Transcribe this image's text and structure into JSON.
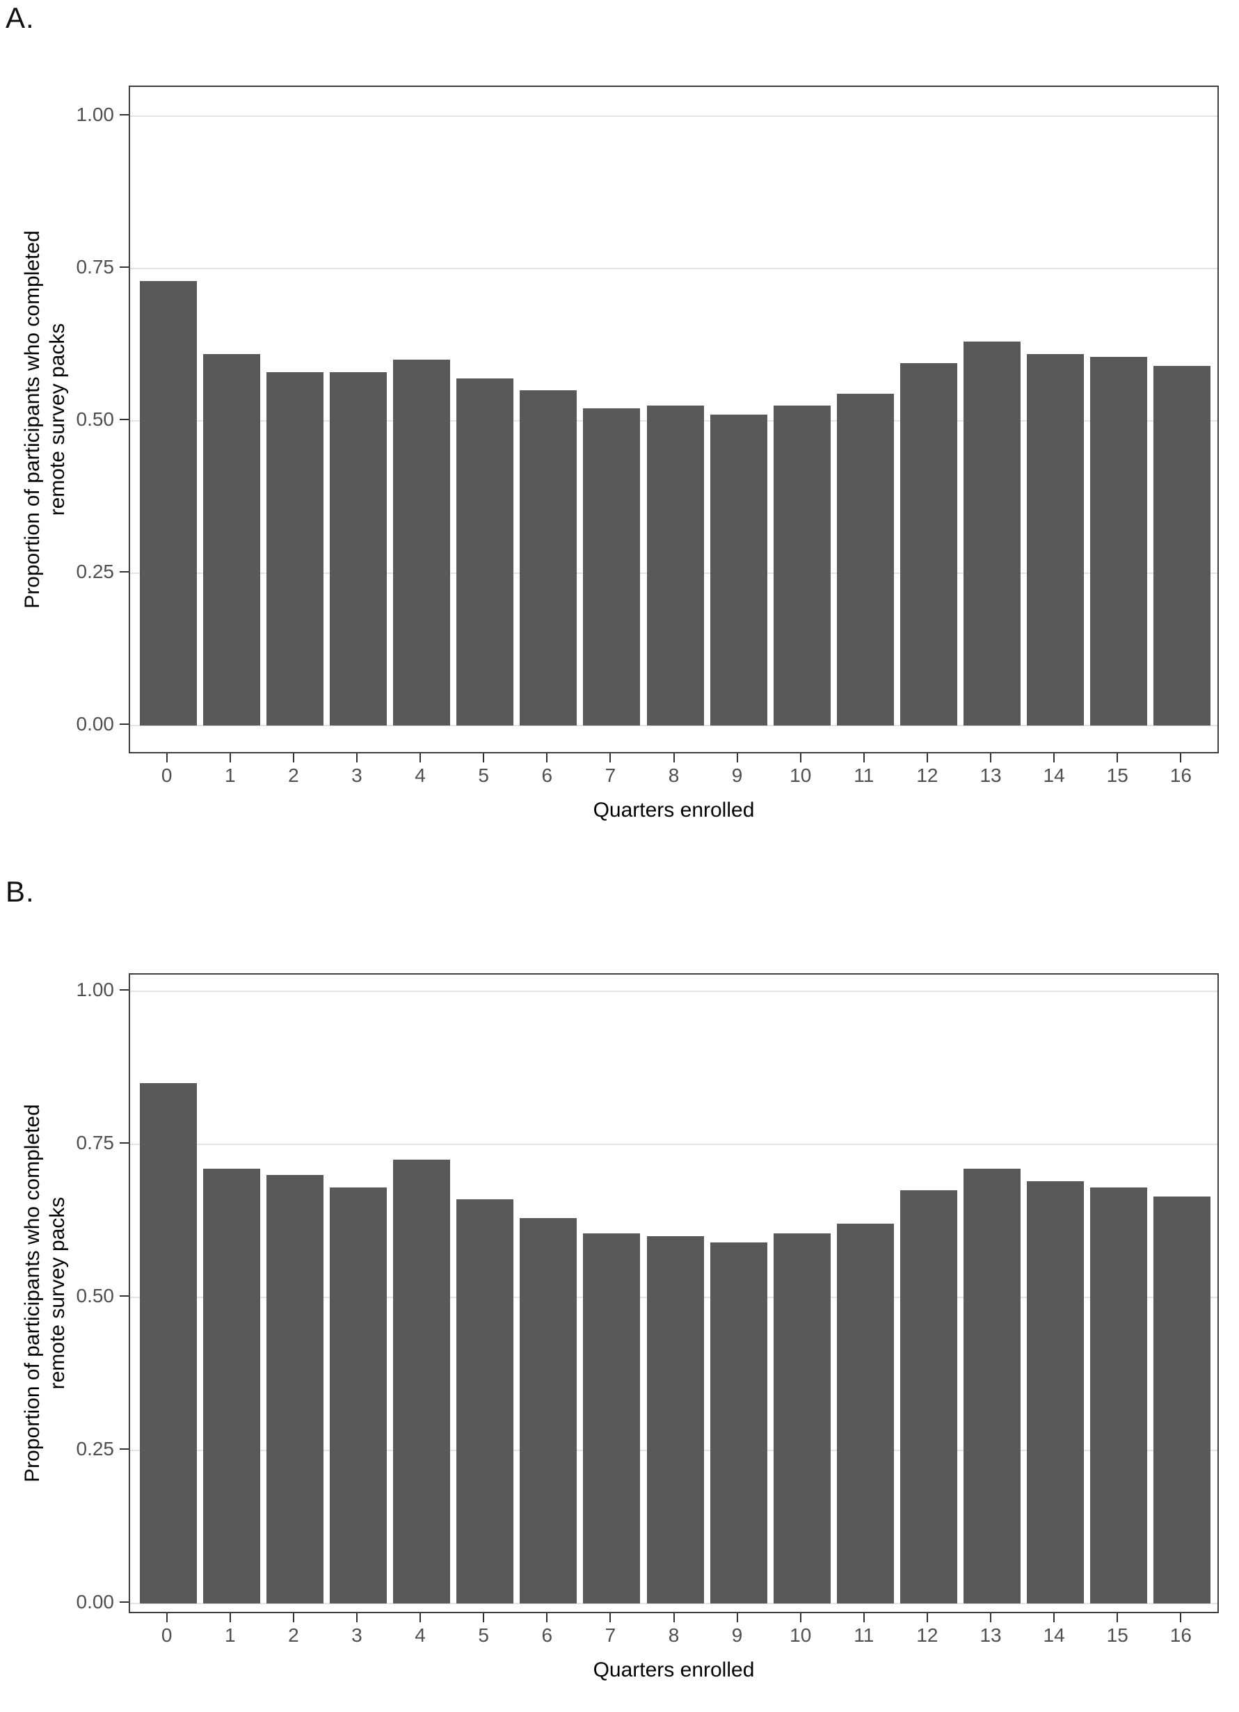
{
  "figure": {
    "background": "#ffffff"
  },
  "panels": [
    {
      "label": "A.",
      "y_title_line1": "Proportion of participants who completed",
      "y_title_line2": "remote survey packs",
      "x_title": "Quarters enrolled"
    },
    {
      "label": "B.",
      "y_title_line1": "Proportion of participants who completed",
      "y_title_line2": "remote survey packs",
      "x_title": "Quarters enrolled"
    }
  ],
  "colors": {
    "bar": "#595959",
    "gridline": "#e4e4e4",
    "panel_border": "#3e3e3e",
    "tick_label": "#4f4f4f",
    "axis_title": "#000000",
    "background": "#ffffff"
  },
  "chart_data": [
    {
      "type": "bar",
      "panel": "A",
      "title": "",
      "xlabel": "Quarters enrolled",
      "ylabel": "Proportion of participants who completed remote survey packs",
      "categories": [
        0,
        1,
        2,
        3,
        4,
        5,
        6,
        7,
        8,
        9,
        10,
        11,
        12,
        13,
        14,
        15,
        16
      ],
      "xtick_labels": [
        "0",
        "1",
        "2",
        "3",
        "4",
        "5",
        "6",
        "7",
        "8",
        "9",
        "10",
        "11",
        "12",
        "13",
        "14",
        "15",
        "16"
      ],
      "values": [
        0.73,
        0.61,
        0.58,
        0.58,
        0.6,
        0.57,
        0.55,
        0.52,
        0.525,
        0.51,
        0.525,
        0.545,
        0.595,
        0.63,
        0.61,
        0.605,
        0.59
      ],
      "ylim": [
        0,
        1
      ],
      "yticks": [
        1.0,
        0.75,
        0.5,
        0.25,
        0.0
      ],
      "ytick_labels": [
        "1.00",
        "0.75",
        "0.50",
        "0.25",
        "0.00"
      ],
      "grid": true,
      "legend": false,
      "bar_color": "#595959"
    },
    {
      "type": "bar",
      "panel": "B",
      "title": "",
      "xlabel": "Quarters enrolled",
      "ylabel": "Proportion of participants who completed remote survey packs",
      "categories": [
        0,
        1,
        2,
        3,
        4,
        5,
        6,
        7,
        8,
        9,
        10,
        11,
        12,
        13,
        14,
        15,
        16
      ],
      "xtick_labels": [
        "0",
        "1",
        "2",
        "3",
        "4",
        "5",
        "6",
        "7",
        "8",
        "9",
        "10",
        "11",
        "12",
        "13",
        "14",
        "15",
        "16"
      ],
      "values": [
        0.85,
        0.71,
        0.7,
        0.68,
        0.725,
        0.66,
        0.63,
        0.605,
        0.6,
        0.59,
        0.605,
        0.62,
        0.675,
        0.71,
        0.69,
        0.68,
        0.665
      ],
      "ylim": [
        0,
        1
      ],
      "yticks": [
        1.0,
        0.75,
        0.5,
        0.25,
        0.0
      ],
      "ytick_labels": [
        "1.00",
        "0.75",
        "0.50",
        "0.25",
        "0.00"
      ],
      "grid": true,
      "legend": false,
      "bar_color": "#595959"
    }
  ]
}
